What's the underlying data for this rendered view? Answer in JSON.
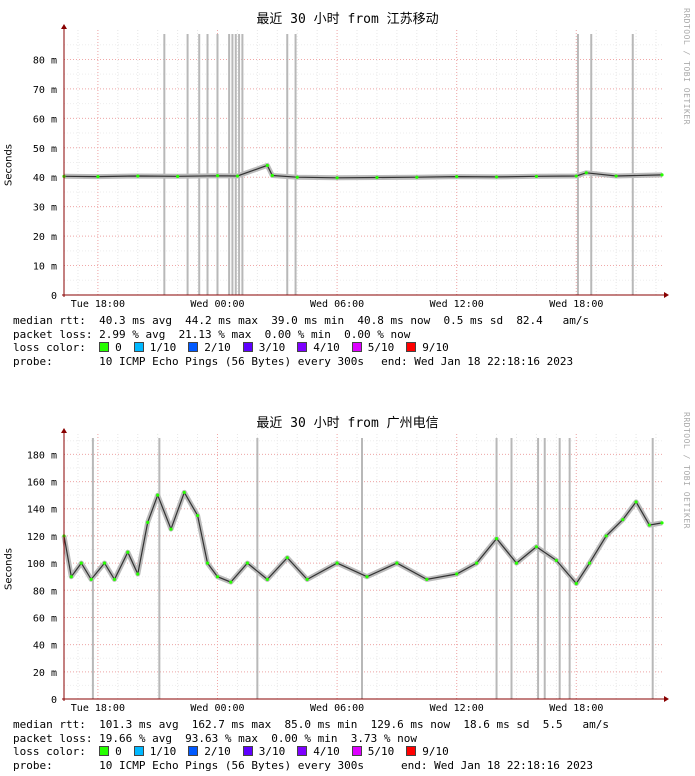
{
  "loss_scale": [
    {
      "label": "0",
      "color": "#26ff00"
    },
    {
      "label": "1/10",
      "color": "#00b8ff"
    },
    {
      "label": "2/10",
      "color": "#0059ff"
    },
    {
      "label": "3/10",
      "color": "#5e00ff"
    },
    {
      "label": "4/10",
      "color": "#7e00ff"
    },
    {
      "label": "5/10",
      "color": "#dd00ff"
    },
    {
      "label": "9/10",
      "color": "#ff0000"
    }
  ],
  "watermark": "RRDTOOL / TOBI OETIKER",
  "chart_data": [
    {
      "type": "line",
      "title": "最近 30 小时 from 江苏移动",
      "ylabel": "Seconds",
      "y_unit": "ms",
      "ylim": [
        0,
        90
      ],
      "yticks": [
        0,
        10,
        20,
        30,
        40,
        50,
        60,
        70,
        80
      ],
      "ytick_labels": [
        "0",
        "10 m",
        "20 m",
        "30 m",
        "40 m",
        "50 m",
        "60 m",
        "70 m",
        "80 m"
      ],
      "xlim": [
        "Jan 17 16:18",
        "Jan 18 22:18"
      ],
      "xticks": [
        {
          "t": "Jan 17 18:00",
          "label": "Tue 18:00"
        },
        {
          "t": "Jan 18 00:00",
          "label": "Wed 00:00"
        },
        {
          "t": "Jan 18 06:00",
          "label": "Wed 06:00"
        },
        {
          "t": "Jan 18 12:00",
          "label": "Wed 12:00"
        },
        {
          "t": "Jan 18 18:00",
          "label": "Wed 18:00"
        }
      ],
      "grid": true,
      "loss_spikes": [
        "Jan 17 21:20",
        "Jan 17 22:30",
        "Jan 17 23:05",
        "Jan 17 23:30",
        "Jan 18 00:00",
        "Jan 18 00:35",
        "Jan 18 00:45",
        "Jan 18 00:55",
        "Jan 18 01:05",
        "Jan 18 01:15",
        "Jan 18 03:30",
        "Jan 18 03:55",
        "Jan 18 18:05",
        "Jan 18 18:45",
        "Jan 18 20:50"
      ],
      "series": [
        {
          "values": [
            [
              "Jan 17 16:18",
              40.3
            ],
            [
              "Jan 17 18:00",
              40.2
            ],
            [
              "Jan 17 20:00",
              40.4
            ],
            [
              "Jan 17 22:00",
              40.3
            ],
            [
              "Jan 18 00:00",
              40.5
            ],
            [
              "Jan 18 01:00",
              40.4
            ],
            [
              "Jan 18 02:30",
              44.0
            ],
            [
              "Jan 18 02:45",
              40.6
            ],
            [
              "Jan 18 04:00",
              40.0
            ],
            [
              "Jan 18 06:00",
              39.8
            ],
            [
              "Jan 18 08:00",
              39.9
            ],
            [
              "Jan 18 10:00",
              40.0
            ],
            [
              "Jan 18 12:00",
              40.2
            ],
            [
              "Jan 18 14:00",
              40.1
            ],
            [
              "Jan 18 16:00",
              40.3
            ],
            [
              "Jan 18 18:00",
              40.4
            ],
            [
              "Jan 18 18:30",
              41.5
            ],
            [
              "Jan 18 20:00",
              40.4
            ],
            [
              "Jan 18 22:18",
              40.8
            ]
          ]
        }
      ],
      "stats": {
        "median_rtt": "median rtt:  40.3 ms avg  44.2 ms max  39.0 ms min  40.8 ms now  0.5 ms sd  82.4   am/s",
        "packet_loss": "packet loss: 2.99 % avg  21.13 % max  0.00 % min  0.00 % now",
        "loss_color_label": "loss color:",
        "probe": "probe:       10 ICMP Echo Pings (56 Bytes) every 300s",
        "end": "end: Wed Jan 18 22:18:16 2023"
      }
    },
    {
      "type": "line",
      "title": "最近 30 小时 from 广州电信",
      "ylabel": "Seconds",
      "y_unit": "ms",
      "ylim": [
        0,
        195
      ],
      "yticks": [
        0,
        20,
        40,
        60,
        80,
        100,
        120,
        140,
        160,
        180
      ],
      "ytick_labels": [
        "0",
        "20 m",
        "40 m",
        "60 m",
        "80 m",
        "100 m",
        "120 m",
        "140 m",
        "160 m",
        "180 m"
      ],
      "xlim": [
        "Jan 17 16:18",
        "Jan 18 22:18"
      ],
      "xticks": [
        {
          "t": "Jan 17 18:00",
          "label": "Tue 18:00"
        },
        {
          "t": "Jan 18 00:00",
          "label": "Wed 00:00"
        },
        {
          "t": "Jan 18 06:00",
          "label": "Wed 06:00"
        },
        {
          "t": "Jan 18 12:00",
          "label": "Wed 12:00"
        },
        {
          "t": "Jan 18 18:00",
          "label": "Wed 18:00"
        }
      ],
      "grid": true,
      "loss_spikes": [
        "Jan 17 17:45",
        "Jan 17 21:05",
        "Jan 18 02:00",
        "Jan 18 07:15",
        "Jan 18 14:00",
        "Jan 18 14:45",
        "Jan 18 16:05",
        "Jan 18 16:25",
        "Jan 18 17:10",
        "Jan 18 17:40",
        "Jan 18 21:50"
      ],
      "series": [
        {
          "values": [
            [
              "Jan 17 16:18",
              120
            ],
            [
              "Jan 17 16:40",
              90
            ],
            [
              "Jan 17 17:10",
              100
            ],
            [
              "Jan 17 17:40",
              88
            ],
            [
              "Jan 17 18:20",
              100
            ],
            [
              "Jan 17 18:50",
              88
            ],
            [
              "Jan 17 19:30",
              108
            ],
            [
              "Jan 17 20:00",
              92
            ],
            [
              "Jan 17 20:30",
              130
            ],
            [
              "Jan 17 21:00",
              150
            ],
            [
              "Jan 17 21:40",
              125
            ],
            [
              "Jan 17 22:20",
              152
            ],
            [
              "Jan 17 23:00",
              135
            ],
            [
              "Jan 17 23:30",
              100
            ],
            [
              "Jan 18 00:00",
              90
            ],
            [
              "Jan 18 00:40",
              86
            ],
            [
              "Jan 18 01:30",
              100
            ],
            [
              "Jan 18 02:30",
              88
            ],
            [
              "Jan 18 03:30",
              104
            ],
            [
              "Jan 18 04:30",
              88
            ],
            [
              "Jan 18 06:00",
              100
            ],
            [
              "Jan 18 07:30",
              90
            ],
            [
              "Jan 18 09:00",
              100
            ],
            [
              "Jan 18 10:30",
              88
            ],
            [
              "Jan 18 12:00",
              92
            ],
            [
              "Jan 18 13:00",
              100
            ],
            [
              "Jan 18 14:00",
              118
            ],
            [
              "Jan 18 15:00",
              100
            ],
            [
              "Jan 18 16:00",
              112
            ],
            [
              "Jan 18 17:00",
              102
            ],
            [
              "Jan 18 18:00",
              85
            ],
            [
              "Jan 18 18:40",
              100
            ],
            [
              "Jan 18 19:30",
              120
            ],
            [
              "Jan 18 20:20",
              132
            ],
            [
              "Jan 18 21:00",
              145
            ],
            [
              "Jan 18 21:40",
              128
            ],
            [
              "Jan 18 22:18",
              129.6
            ]
          ]
        }
      ],
      "stats": {
        "median_rtt": "median rtt:  101.3 ms avg  162.7 ms max  85.0 ms min  129.6 ms now  18.6 ms sd  5.5   am/s",
        "packet_loss": "packet loss: 19.66 % avg  93.63 % max  0.00 % min  3.73 % now",
        "loss_color_label": "loss color:",
        "probe": "probe:       10 ICMP Echo Pings (56 Bytes) every 300s",
        "end": "end: Wed Jan 18 22:18:16 2023"
      }
    }
  ]
}
